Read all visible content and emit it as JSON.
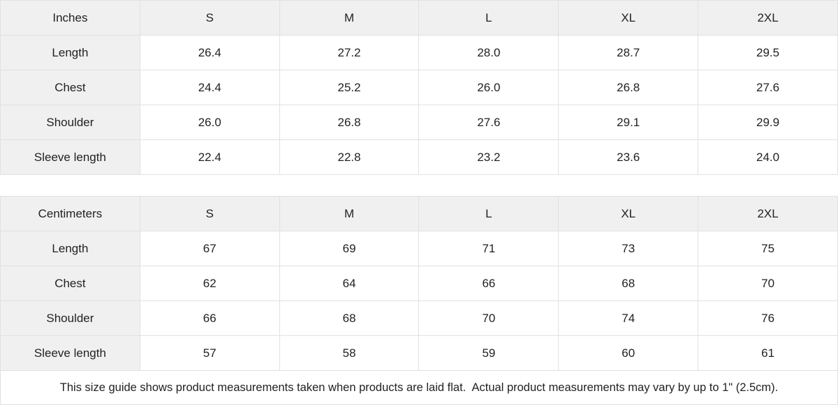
{
  "inches_table": {
    "header": [
      "Inches",
      "S",
      "M",
      "L",
      "XL",
      "2XL"
    ],
    "rows": [
      {
        "label": "Length",
        "values": [
          "26.4",
          "27.2",
          "28.0",
          "28.7",
          "29.5"
        ]
      },
      {
        "label": "Chest",
        "values": [
          "24.4",
          "25.2",
          "26.0",
          "26.8",
          "27.6"
        ]
      },
      {
        "label": "Shoulder",
        "values": [
          "26.0",
          "26.8",
          "27.6",
          "29.1",
          "29.9"
        ]
      },
      {
        "label": "Sleeve length",
        "values": [
          "22.4",
          "22.8",
          "23.2",
          "23.6",
          "24.0"
        ]
      }
    ]
  },
  "centimeters_table": {
    "header": [
      "Centimeters",
      "S",
      "M",
      "L",
      "XL",
      "2XL"
    ],
    "rows": [
      {
        "label": "Length",
        "values": [
          "67",
          "69",
          "71",
          "73",
          "75"
        ]
      },
      {
        "label": "Chest",
        "values": [
          "62",
          "64",
          "66",
          "68",
          "70"
        ]
      },
      {
        "label": "Shoulder",
        "values": [
          "66",
          "68",
          "70",
          "74",
          "76"
        ]
      },
      {
        "label": "Sleeve length",
        "values": [
          "57",
          "58",
          "59",
          "60",
          "61"
        ]
      }
    ]
  },
  "footer": {
    "note": "This size guide shows product measurements taken when products are laid flat.  Actual product measurements may vary by up to 1\" (2.5cm)."
  },
  "colors": {
    "header_bg": "#f0f0f0",
    "border": "#e1e1e1",
    "text": "#222222"
  }
}
